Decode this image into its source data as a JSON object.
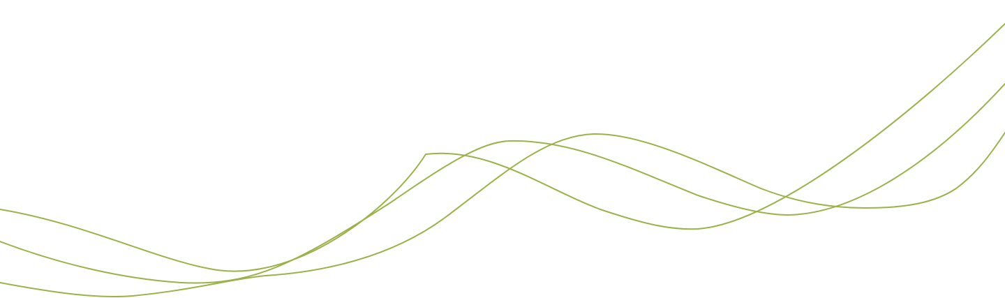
{
  "background": "#ffffff",
  "waves": {
    "color": "#9bb24a",
    "count": 3,
    "lines": [
      {
        "name": "wave-line-1"
      },
      {
        "name": "wave-line-2"
      },
      {
        "name": "wave-line-3"
      }
    ]
  }
}
